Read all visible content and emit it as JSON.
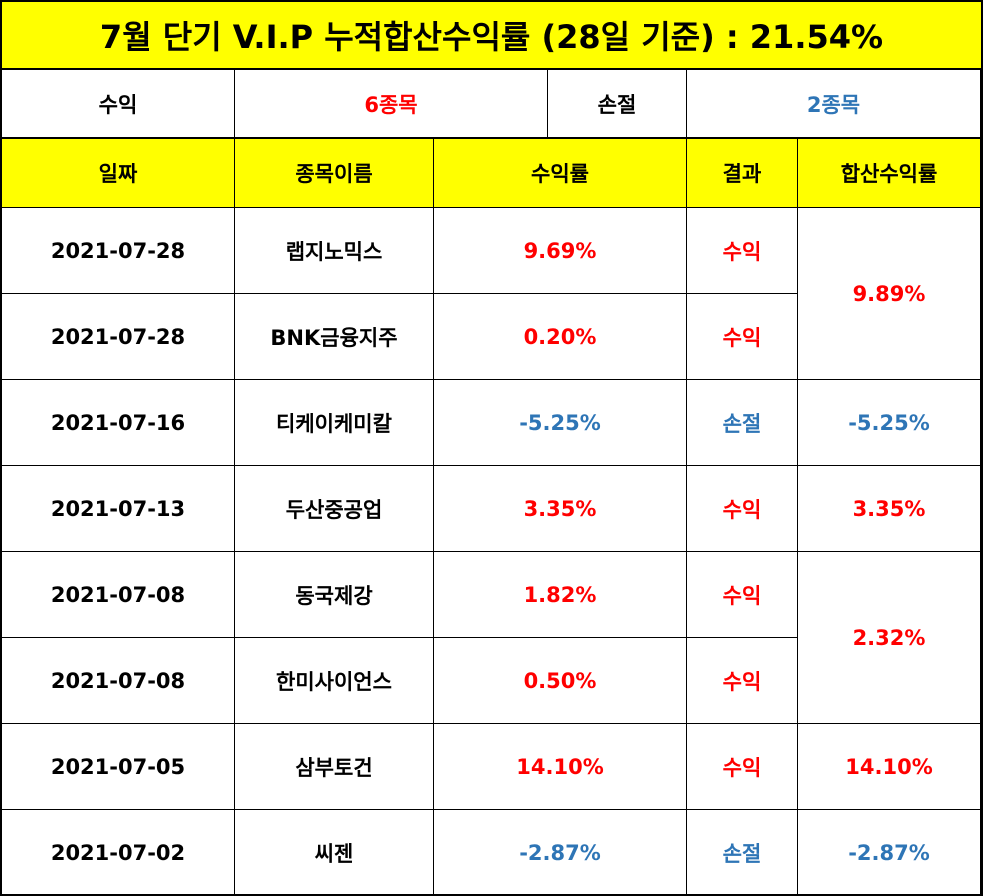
{
  "title": "7월 단기 V.I.P 누적합산수익률 (28일 기준) : 21.54%",
  "summary": {
    "profit_label": "수익",
    "profit_value": "6종목",
    "loss_label": "손절",
    "loss_value": "2종목"
  },
  "headers": [
    "일짜",
    "종목이름",
    "수익률",
    "결과",
    "합산수익률"
  ],
  "rows": [
    {
      "date": "2021-07-28",
      "name": "랩지노믹스",
      "rate": "9.69%",
      "result": "수익"
    },
    {
      "date": "2021-07-28",
      "name": "BNK금융지주",
      "rate": "0.20%",
      "result": "수익"
    },
    {
      "date": "2021-07-16",
      "name": "티케이케미칼",
      "rate": "-5.25%",
      "result": "손절"
    },
    {
      "date": "2021-07-13",
      "name": "두산중공업",
      "rate": "3.35%",
      "result": "수익"
    },
    {
      "date": "2021-07-08",
      "name": "동국제강",
      "rate": "1.82%",
      "result": "수익"
    },
    {
      "date": "2021-07-08",
      "name": "한미사이언스",
      "rate": "0.50%",
      "result": "수익"
    },
    {
      "date": "2021-07-05",
      "name": "삼부토건",
      "rate": "14.10%",
      "result": "수익"
    },
    {
      "date": "2021-07-02",
      "name": "씨젠",
      "rate": "-2.87%",
      "result": "손절"
    }
  ],
  "combined": [
    "9.89%",
    "-5.25%",
    "3.35%",
    "2.32%",
    "14.10%",
    "-2.87%"
  ],
  "colors": {
    "header_bg": "#ffff00",
    "profit": "#ff0000",
    "loss": "#2e75b6"
  }
}
